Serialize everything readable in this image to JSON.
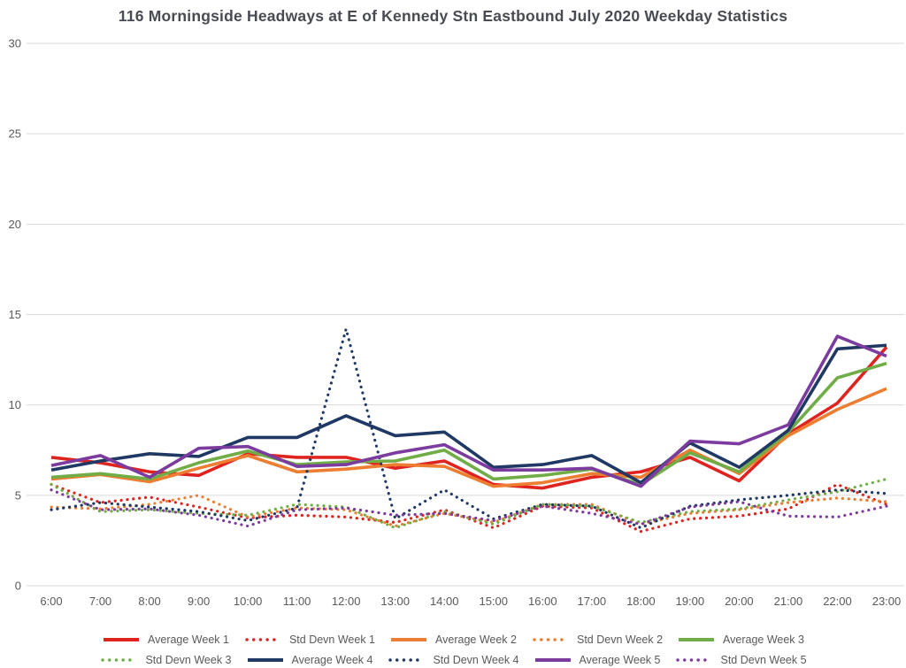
{
  "title": "116 Morningside Headways at E of Kennedy Stn Eastbound July 2020 Weekday Statistics",
  "colors": {
    "week1_red": "#DF2420",
    "week2_orange": "#ED7D31",
    "week3_green": "#70AD47",
    "week4_navy": "#203864",
    "week5_purple": "#7C3B9E",
    "gridline": "#D9D9D9",
    "axis_text": "#595959",
    "title_text": "#494B52"
  },
  "chart_data": {
    "type": "line",
    "title": "116 Morningside Headways at E of Kennedy Stn Eastbound July 2020 Weekday Statistics",
    "xlabel": "",
    "ylabel": "",
    "ylim": [
      0,
      30
    ],
    "yticks": [
      0,
      5,
      10,
      15,
      20,
      25,
      30
    ],
    "grid": "horizontal",
    "legend_position": "bottom",
    "x": [
      "6:00",
      "7:00",
      "8:00",
      "9:00",
      "10:00",
      "11:00",
      "12:00",
      "13:00",
      "14:00",
      "15:00",
      "16:00",
      "17:00",
      "18:00",
      "19:00",
      "20:00",
      "21:00",
      "22:00",
      "23:00"
    ],
    "series": [
      {
        "name": "Average Week 1",
        "color": "#DF2420",
        "style": "solid",
        "values": [
          7.1,
          6.8,
          6.3,
          6.1,
          7.3,
          7.1,
          7.1,
          6.5,
          6.9,
          5.6,
          5.4,
          6.0,
          6.3,
          7.1,
          5.8,
          8.4,
          10.1,
          13.2
        ]
      },
      {
        "name": "Std Devn Week 1",
        "color": "#DF2420",
        "style": "dotted",
        "values": [
          5.6,
          4.6,
          4.9,
          4.35,
          3.75,
          3.9,
          3.8,
          3.5,
          4.2,
          3.2,
          4.4,
          4.3,
          3.0,
          3.7,
          3.85,
          4.25,
          5.6,
          4.5
        ]
      },
      {
        "name": "Average Week 2",
        "color": "#ED7D31",
        "style": "solid",
        "values": [
          5.9,
          6.15,
          5.75,
          6.5,
          7.2,
          6.3,
          6.45,
          6.7,
          6.6,
          5.5,
          5.7,
          6.2,
          6.0,
          7.5,
          6.2,
          8.3,
          9.75,
          10.9
        ]
      },
      {
        "name": "Std Devn Week 2",
        "color": "#ED7D31",
        "style": "dotted",
        "values": [
          4.35,
          4.25,
          4.5,
          5.0,
          3.8,
          4.3,
          4.2,
          3.3,
          4.0,
          3.5,
          4.5,
          4.5,
          3.4,
          4.0,
          4.2,
          4.6,
          4.85,
          4.65
        ]
      },
      {
        "name": "Average Week 3",
        "color": "#70AD47",
        "style": "solid",
        "values": [
          6.0,
          6.2,
          5.9,
          6.8,
          7.45,
          6.7,
          6.85,
          6.9,
          7.5,
          5.9,
          6.1,
          6.45,
          5.6,
          7.35,
          6.3,
          8.5,
          11.5,
          12.3
        ]
      },
      {
        "name": "Std Devn Week 3",
        "color": "#70AD47",
        "style": "dotted",
        "values": [
          5.6,
          4.1,
          4.2,
          4.0,
          3.9,
          4.5,
          4.35,
          3.2,
          4.1,
          3.4,
          4.5,
          4.4,
          3.5,
          4.1,
          4.25,
          4.75,
          5.2,
          5.9
        ]
      },
      {
        "name": "Average Week 4",
        "color": "#203864",
        "style": "solid",
        "values": [
          6.4,
          6.9,
          7.3,
          7.15,
          8.2,
          8.2,
          9.4,
          8.3,
          8.5,
          6.55,
          6.7,
          7.2,
          5.7,
          7.9,
          6.55,
          8.6,
          13.1,
          13.3
        ]
      },
      {
        "name": "Std Devn Week 4",
        "color": "#203864",
        "style": "dotted",
        "values": [
          4.2,
          4.6,
          4.35,
          4.1,
          3.6,
          4.3,
          14.2,
          3.7,
          5.3,
          3.7,
          4.5,
          4.4,
          3.2,
          4.4,
          4.75,
          5.0,
          5.3,
          5.1
        ]
      },
      {
        "name": "Average Week 5",
        "color": "#7C3B9E",
        "style": "solid",
        "values": [
          6.65,
          7.2,
          6.0,
          7.6,
          7.7,
          6.6,
          6.7,
          7.35,
          7.8,
          6.4,
          6.4,
          6.5,
          5.5,
          8.0,
          7.85,
          8.9,
          13.8,
          12.7
        ]
      },
      {
        "name": "Std Devn Week 5",
        "color": "#7C3B9E",
        "style": "dotted",
        "values": [
          5.3,
          4.2,
          4.25,
          3.9,
          3.3,
          4.2,
          4.3,
          3.9,
          4.0,
          3.6,
          4.4,
          4.0,
          3.4,
          4.35,
          4.65,
          3.85,
          3.8,
          4.4
        ]
      }
    ],
    "legend_rows": [
      [
        0,
        1,
        2,
        3,
        4
      ],
      [
        5,
        6,
        7,
        8,
        9
      ]
    ]
  }
}
